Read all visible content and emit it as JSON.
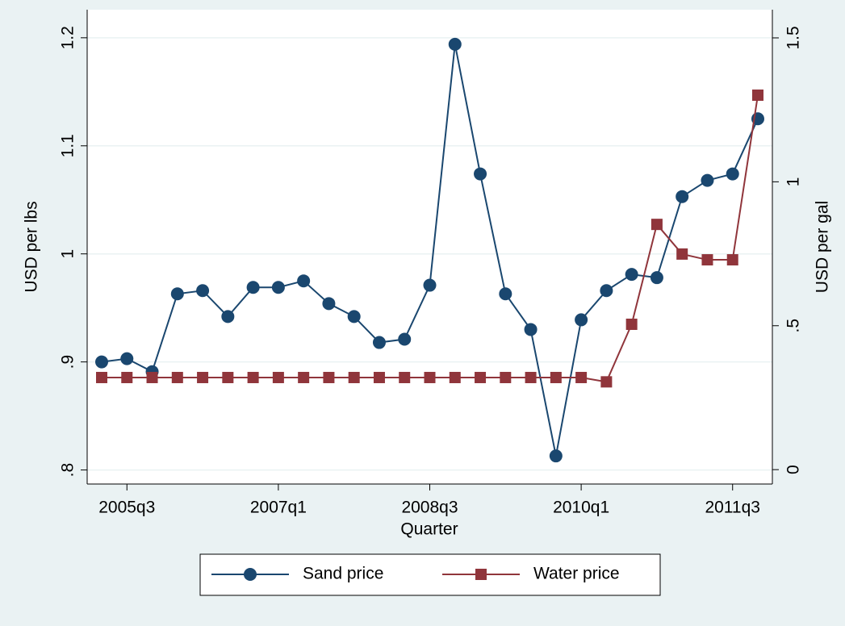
{
  "chart_data": {
    "type": "line",
    "categories": [
      null,
      "2005q3",
      null,
      null,
      null,
      null,
      null,
      "2007q1",
      null,
      null,
      null,
      null,
      null,
      "2008q3",
      null,
      null,
      null,
      null,
      null,
      "2010q1",
      null,
      null,
      null,
      null,
      null,
      "2011q3",
      null
    ],
    "xlabel": "Quarter",
    "ylabel": "USD per lbs",
    "y2label": "USD per gal",
    "ylim": [
      0.787,
      1.226
    ],
    "yticks": [
      {
        "value": 0.8,
        "label": ".8"
      },
      {
        "value": 0.9,
        "label": ".9"
      },
      1,
      1.1,
      1.2
    ],
    "y2lim": [
      -0.05,
      1.598
    ],
    "y2ticks": [
      0,
      {
        "value": 0.5,
        "label": ".5"
      },
      1,
      1.5
    ],
    "grid": true,
    "legend": "bottom",
    "series": [
      {
        "name": "Sand price",
        "color": "#1a476f",
        "marker": "circle",
        "values": [
          0.9,
          0.903,
          0.891,
          0.963,
          0.966,
          0.942,
          0.969,
          0.969,
          0.975,
          0.954,
          0.942,
          0.918,
          0.921,
          0.971,
          1.194,
          1.074,
          0.963,
          0.93,
          0.813,
          0.939,
          0.966,
          0.981,
          0.978,
          1.053,
          1.068,
          1.074,
          1.125
        ]
      },
      {
        "name": "Water price",
        "color": "#90353b",
        "marker": "square",
        "axis": "y2",
        "values": [
          0.32,
          0.32,
          0.32,
          0.32,
          0.32,
          0.32,
          0.32,
          0.32,
          0.32,
          0.32,
          0.32,
          0.32,
          0.32,
          0.32,
          0.32,
          0.32,
          0.32,
          0.32,
          0.32,
          0.32,
          0.305,
          0.505,
          0.852,
          0.749,
          0.729,
          0.729,
          1.301
        ]
      }
    ]
  }
}
